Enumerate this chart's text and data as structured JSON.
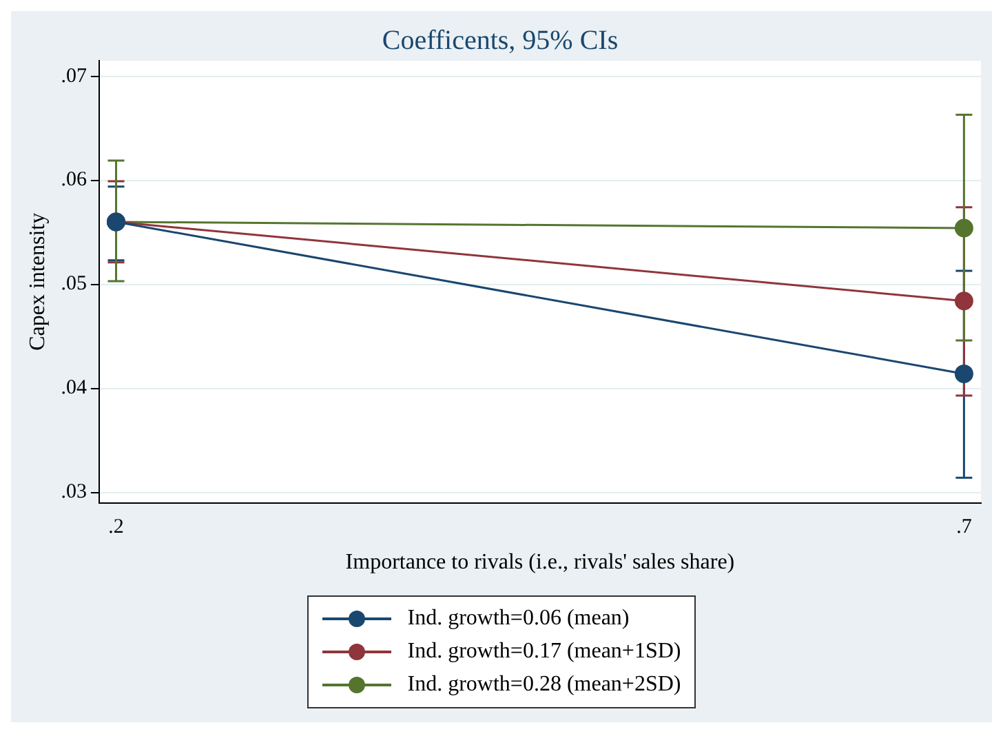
{
  "chart_data": {
    "type": "line",
    "title": "Coefficents, 95% CIs",
    "xlabel": "Importance to rivals (i.e., rivals' sales share)",
    "ylabel": "Capex intensity",
    "x": [
      0.2,
      0.7
    ],
    "series": [
      {
        "name": "Ind. growth=0.06 (mean)",
        "color": "#1a476f",
        "values": [
          0.056,
          0.0414
        ],
        "errors": [
          [
            0.0523,
            0.0594
          ],
          [
            0.0314,
            0.0513
          ]
        ]
      },
      {
        "name": "Ind. growth=0.17 (mean+1SD)",
        "color": "#90353b",
        "values": [
          0.056,
          0.0484
        ],
        "errors": [
          [
            0.0521,
            0.0599
          ],
          [
            0.0393,
            0.0574
          ]
        ]
      },
      {
        "name": "Ind. growth=0.28 (mean+2SD)",
        "color": "#55752f",
        "values": [
          0.056,
          0.0554
        ],
        "errors": [
          [
            0.0503,
            0.0619
          ],
          [
            0.0446,
            0.0663
          ]
        ]
      }
    ],
    "xlim": [
      0.19,
      0.71
    ],
    "xticks": [
      {
        "value": 0.2,
        "label": ".2"
      },
      {
        "value": 0.7,
        "label": ".7"
      }
    ],
    "ylim": [
      0.029,
      0.0715
    ],
    "yticks": [
      {
        "value": 0.03,
        "label": ".03"
      },
      {
        "value": 0.04,
        "label": ".04"
      },
      {
        "value": 0.05,
        "label": ".05"
      },
      {
        "value": 0.06,
        "label": ".06"
      },
      {
        "value": 0.07,
        "label": ".07"
      }
    ],
    "grid": "y",
    "legend": "bottom",
    "marker": "circle",
    "line_style": "solid"
  }
}
